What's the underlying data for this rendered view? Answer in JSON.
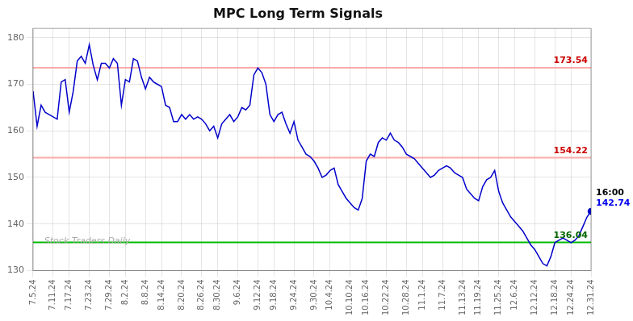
{
  "chart_data": {
    "type": "line",
    "title": "MPC Long Term Signals",
    "categories": [
      "7.5.24",
      null,
      null,
      null,
      null,
      "7.11.24",
      null,
      null,
      null,
      "7.17.24",
      null,
      null,
      null,
      null,
      "7.23.24",
      null,
      null,
      null,
      null,
      "7.29.24",
      null,
      null,
      null,
      "8.2.24",
      null,
      null,
      null,
      null,
      "8.8.24",
      null,
      null,
      null,
      "8.14.24",
      null,
      null,
      null,
      null,
      "8.20.24",
      null,
      null,
      null,
      null,
      "8.26.24",
      null,
      null,
      null,
      "8.30.24",
      null,
      null,
      null,
      null,
      "9.6.24",
      null,
      null,
      null,
      null,
      "9.12.24",
      null,
      null,
      null,
      "9.18.24",
      null,
      null,
      null,
      null,
      "9.24.24",
      null,
      null,
      null,
      null,
      "9.30.24",
      null,
      null,
      null,
      "10.4.24",
      null,
      null,
      null,
      null,
      "10.10.24",
      null,
      null,
      null,
      "10.16.24",
      null,
      null,
      null,
      null,
      "10.22.24",
      null,
      null,
      null,
      null,
      "10.28.24",
      null,
      null,
      null,
      "11.1.24",
      null,
      null,
      null,
      null,
      "11.7.24",
      null,
      null,
      null,
      null,
      "11.13.24",
      null,
      null,
      null,
      "11.19.24",
      null,
      null,
      null,
      null,
      "11.25.24",
      null,
      null,
      null,
      "12.6.24",
      null,
      null,
      null,
      null,
      "12.12.24",
      null,
      null,
      null,
      null,
      "12.18.24",
      null,
      null,
      null,
      "12.24.24",
      null,
      null,
      null,
      null,
      "12.31.24"
    ],
    "values": [
      168.5,
      161.0,
      165.5,
      164.0,
      163.5,
      163.0,
      162.5,
      170.5,
      171.0,
      164.0,
      168.5,
      175.0,
      176.0,
      174.5,
      178.5,
      174.0,
      171.0,
      174.5,
      174.5,
      173.5,
      175.5,
      174.5,
      165.5,
      171.0,
      170.5,
      175.5,
      175.0,
      171.5,
      169.0,
      171.5,
      170.5,
      170.0,
      169.5,
      165.5,
      165.0,
      162.0,
      162.0,
      163.5,
      162.5,
      163.5,
      162.5,
      163.0,
      162.5,
      161.5,
      160.0,
      161.0,
      158.5,
      161.5,
      162.5,
      163.5,
      162.0,
      163.0,
      165.0,
      164.5,
      165.5,
      172.0,
      173.5,
      172.5,
      170.0,
      163.5,
      162.0,
      163.5,
      164.0,
      161.5,
      159.5,
      162.0,
      158.0,
      156.5,
      155.0,
      154.5,
      153.5,
      152.0,
      150.0,
      150.5,
      151.5,
      152.0,
      148.5,
      147.0,
      145.5,
      144.5,
      143.5,
      143.0,
      145.5,
      153.5,
      155.0,
      154.5,
      157.5,
      158.5,
      158.0,
      159.5,
      158.0,
      157.5,
      156.5,
      155.0,
      154.5,
      154.0,
      153.0,
      152.0,
      151.0,
      150.0,
      150.5,
      151.5,
      152.0,
      152.5,
      152.0,
      151.0,
      150.5,
      150.0,
      147.5,
      146.5,
      145.5,
      145.0,
      148.0,
      149.5,
      150.0,
      151.5,
      147.0,
      144.5,
      143.0,
      141.5,
      140.5,
      139.5,
      138.5,
      137.0,
      135.5,
      134.5,
      133.0,
      131.5,
      131.0,
      133.0,
      136.0,
      136.5,
      137.0,
      136.5,
      136.0,
      136.5,
      137.5,
      139.5,
      141.5,
      142.74
    ],
    "color": "#0000cc",
    "ylim": [
      130,
      182
    ],
    "yticks": [
      130,
      140,
      150,
      160,
      170,
      180
    ],
    "grid": true,
    "watermark": "Stock Traders Daily",
    "hlines": [
      {
        "value": 173.54,
        "label": "173.54",
        "color": "#ffaaaa",
        "label_color": "#cc0000"
      },
      {
        "value": 154.22,
        "label": "154.22",
        "color": "#ffaaaa",
        "label_color": "#cc0000"
      },
      {
        "value": 136.04,
        "label": "136.04",
        "color": "#00bb00",
        "label_color": "#006600"
      }
    ],
    "annotations": [
      {
        "text": "16:00",
        "color": "#000000"
      },
      {
        "text": "142.74",
        "color": "#0000ee"
      }
    ]
  }
}
